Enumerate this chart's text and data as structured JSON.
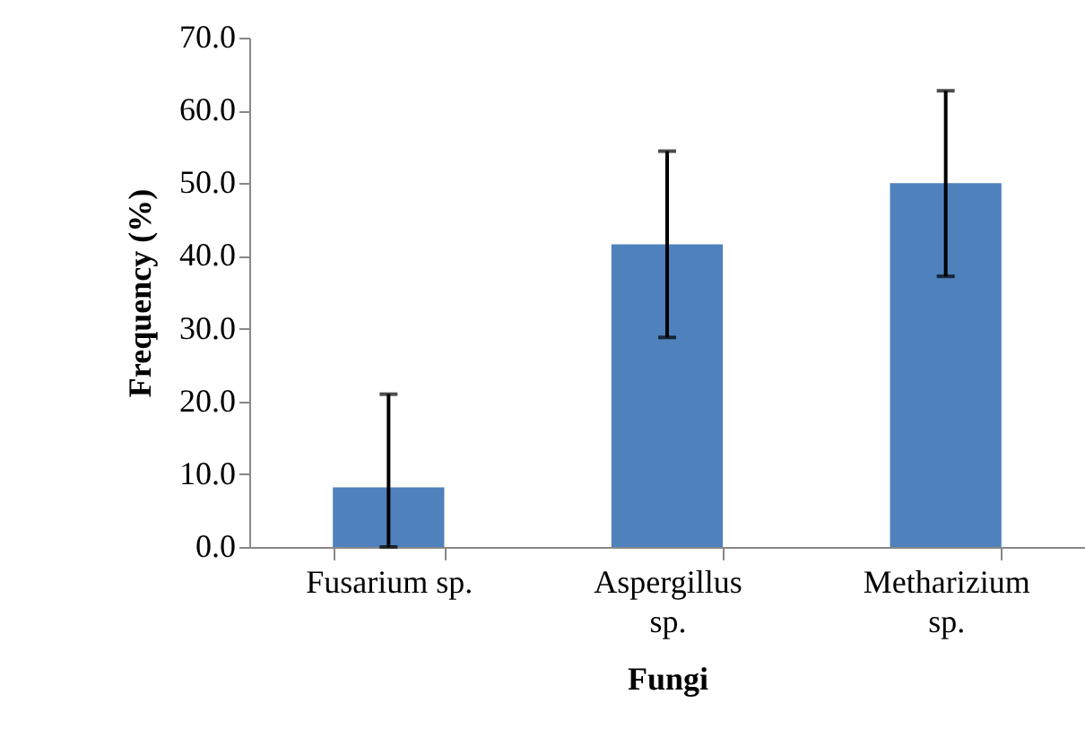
{
  "chart_data": {
    "type": "bar",
    "xlabel": "Fungi",
    "ylabel": "Frequency (%)",
    "categories": [
      "Fusarium sp.",
      "Aspergillus sp.",
      "Metharizium sp."
    ],
    "values": [
      8.2,
      41.6,
      50.0
    ],
    "errors": [
      [
        0,
        21.0
      ],
      [
        28.8,
        54.4
      ],
      [
        37.2,
        62.7
      ]
    ],
    "color": "#4f81bd",
    "ylim": [
      0,
      70
    ],
    "yticks": [
      {
        "value": 0,
        "label": "0.0"
      },
      {
        "value": 10,
        "label": "10.0"
      },
      {
        "value": 20,
        "label": "20.0"
      },
      {
        "value": 30,
        "label": "30.0"
      },
      {
        "value": 40,
        "label": "40.0"
      },
      {
        "value": 50,
        "label": "50.0"
      },
      {
        "value": 60,
        "label": "60.0"
      },
      {
        "value": 70,
        "label": "70.0"
      }
    ],
    "grid": false
  }
}
